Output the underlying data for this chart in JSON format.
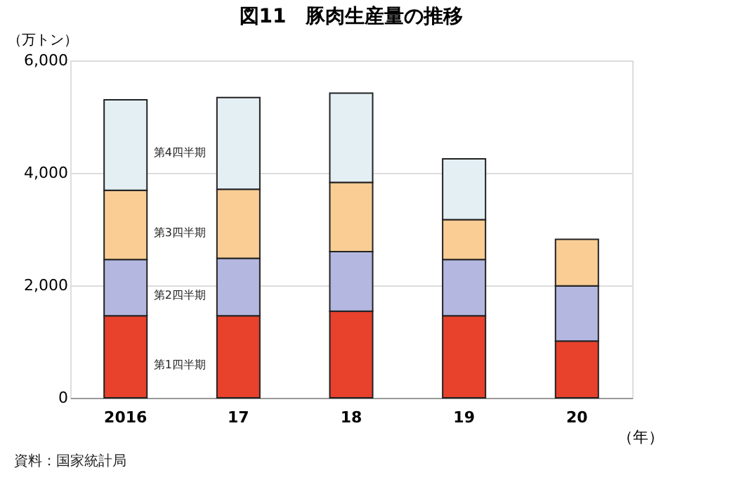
{
  "chart_data": {
    "type": "bar",
    "stacked": true,
    "title": "図11　豚肉生産量の推移",
    "ylabel": "（万トン）",
    "xlabel": "（年）",
    "categories": [
      "2016",
      "17",
      "18",
      "19",
      "20"
    ],
    "series": [
      {
        "name": "第1四半期",
        "color": "#e8412c",
        "values": [
          1460,
          1460,
          1540,
          1460,
          1010
        ]
      },
      {
        "name": "第2四半期",
        "color": "#b4b8e0",
        "values": [
          1000,
          1020,
          1060,
          1000,
          980
        ]
      },
      {
        "name": "第3四半期",
        "color": "#f9cd94",
        "values": [
          1230,
          1230,
          1230,
          710,
          830
        ]
      },
      {
        "name": "第4四半期",
        "color": "#e4eff4",
        "values": [
          1610,
          1630,
          1590,
          1080,
          null
        ]
      }
    ],
    "ylim": [
      0,
      6000
    ],
    "yticks": [
      {
        "value": 0,
        "label": "0"
      },
      {
        "value": 2000,
        "label": "2,000"
      },
      {
        "value": 4000,
        "label": "4,000"
      },
      {
        "value": 6000,
        "label": "6,000"
      }
    ],
    "grid": "y",
    "legend": false,
    "annotations": [
      "資料：国家統計局"
    ]
  }
}
